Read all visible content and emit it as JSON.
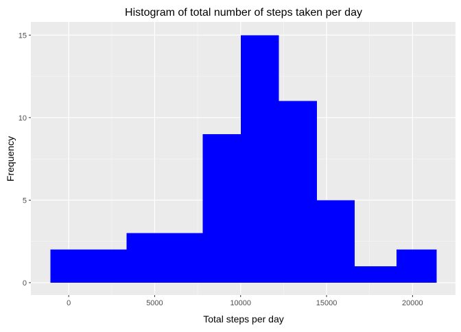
{
  "chart_data": {
    "type": "bar",
    "subtype": "histogram",
    "title": "Histogram of total number of steps taken per day",
    "xlabel": "Total steps per day",
    "ylabel": "Frequency",
    "bins": [
      {
        "start": -1054,
        "end": 3370,
        "count": 2
      },
      {
        "start": 3370,
        "end": 7794,
        "count": 3
      },
      {
        "start": 7794,
        "end": 10006,
        "count": 9
      },
      {
        "start": 10006,
        "end": 12218,
        "count": 15
      },
      {
        "start": 12218,
        "end": 14430,
        "count": 11
      },
      {
        "start": 14430,
        "end": 16642,
        "count": 5
      },
      {
        "start": 16642,
        "end": 19074,
        "count": 1
      },
      {
        "start": 19074,
        "end": 21406,
        "count": 2
      }
    ],
    "xlim": [
      -2200,
      22500
    ],
    "ylim": [
      -0.75,
      15.8
    ],
    "x_ticks": [
      0,
      5000,
      10000,
      15000,
      20000
    ],
    "y_ticks": [
      0,
      5,
      10,
      15
    ],
    "x_tick_labels": [
      "0",
      "5000",
      "10000",
      "15000",
      "20000"
    ],
    "y_tick_labels": [
      "0",
      "5",
      "10",
      "15"
    ],
    "grid": true,
    "legend": "none",
    "colors": {
      "bar": "#0000ff",
      "panel": "#ebebeb",
      "grid_major": "#ffffff",
      "grid_minor": "#f5f5f5"
    }
  }
}
